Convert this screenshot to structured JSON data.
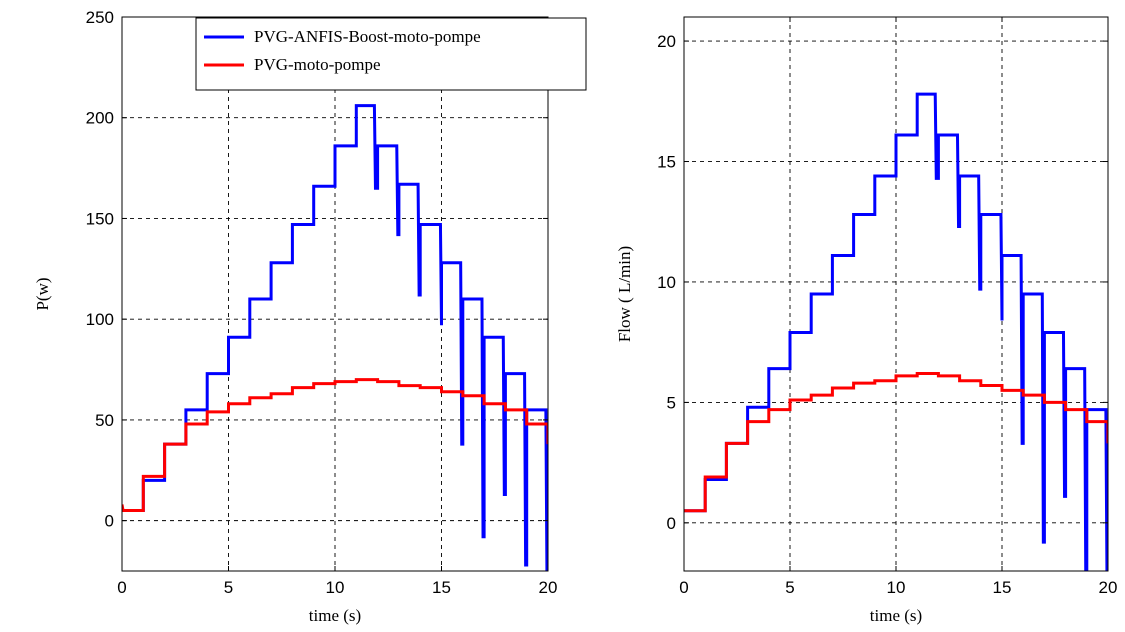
{
  "chart_data": [
    {
      "type": "line",
      "xlabel": "time (s)",
      "ylabel": "P(w)",
      "xlim": [
        0,
        20
      ],
      "ylim": [
        -25,
        250
      ],
      "xticks": [
        0,
        5,
        10,
        15,
        20
      ],
      "yticks": [
        0,
        50,
        100,
        150,
        200,
        250
      ],
      "grid": true,
      "legend": "top-right",
      "series": [
        {
          "name": "PVG-ANFIS-Boost-moto-pompe",
          "color": "#0000ff",
          "x": [
            0,
            1,
            1,
            2,
            2,
            3,
            3,
            4,
            4,
            5,
            5,
            6,
            6,
            7,
            7,
            8,
            8,
            9,
            9,
            10,
            10,
            11,
            11,
            11.85,
            11.9,
            12,
            12,
            12.9,
            12.95,
            13,
            13,
            13.9,
            13.95,
            14,
            14,
            14.95,
            15,
            15,
            15.9,
            15.95,
            16,
            16,
            16.9,
            16.95,
            17,
            17,
            17.9,
            17.95,
            18,
            18,
            18.9,
            18.95,
            19,
            19,
            19.9,
            19.95,
            20
          ],
          "y": [
            5,
            5,
            20,
            20,
            38,
            38,
            55,
            55,
            73,
            73,
            91,
            91,
            110,
            110,
            128,
            128,
            147,
            147,
            166,
            166,
            186,
            186,
            206,
            206,
            165,
            165,
            186,
            186,
            142,
            142,
            167,
            167,
            112,
            112,
            147,
            147,
            97,
            128,
            128,
            38,
            38,
            110,
            110,
            -8,
            -8,
            91,
            91,
            13,
            13,
            73,
            73,
            -22,
            -22,
            55,
            55,
            -25,
            -25
          ]
        },
        {
          "name": "PVG-moto-pompe",
          "color": "#ff0000",
          "x": [
            0,
            0.05,
            1,
            1,
            2,
            2,
            3,
            3,
            4,
            4,
            5,
            5,
            6,
            6,
            7,
            7,
            8,
            8,
            9,
            9,
            10,
            10,
            11,
            11,
            12,
            12,
            13,
            13,
            14,
            14,
            15,
            15,
            16,
            16,
            17,
            17,
            18,
            18,
            19,
            19,
            20,
            20
          ],
          "y": [
            8,
            5,
            5,
            22,
            22,
            38,
            38,
            48,
            48,
            54,
            54,
            58,
            58,
            61,
            61,
            63,
            63,
            66,
            66,
            68,
            68,
            69,
            69,
            70,
            70,
            69,
            69,
            67,
            67,
            66,
            66,
            64,
            64,
            62,
            62,
            58,
            58,
            55,
            55,
            48,
            48,
            38
          ]
        }
      ]
    },
    {
      "type": "line",
      "xlabel": "time (s)",
      "ylabel": "Flow ( L/min)",
      "xlim": [
        0,
        20
      ],
      "ylim": [
        -2,
        21
      ],
      "xticks": [
        0,
        5,
        10,
        15,
        20
      ],
      "yticks": [
        0,
        5,
        10,
        15,
        20
      ],
      "grid": true,
      "series": [
        {
          "name": "PVG-ANFIS-Boost-moto-pompe",
          "color": "#0000ff",
          "x": [
            0,
            1,
            1,
            2,
            2,
            3,
            3,
            4,
            4,
            5,
            5,
            6,
            6,
            7,
            7,
            8,
            8,
            9,
            9,
            10,
            10,
            11,
            11,
            11.85,
            11.9,
            12,
            12,
            12.9,
            12.95,
            13,
            13,
            13.9,
            13.95,
            14,
            14,
            14.95,
            15,
            15,
            15.9,
            15.95,
            16,
            16,
            16.9,
            16.95,
            17,
            17,
            17.9,
            17.95,
            18,
            18,
            18.9,
            18.95,
            19,
            19,
            19.9,
            19.95,
            20
          ],
          "y": [
            0.5,
            0.5,
            1.8,
            1.8,
            3.3,
            3.3,
            4.8,
            4.8,
            6.4,
            6.4,
            7.9,
            7.9,
            9.5,
            9.5,
            11.1,
            11.1,
            12.8,
            12.8,
            14.4,
            14.4,
            16.1,
            16.1,
            17.8,
            17.8,
            14.3,
            14.3,
            16.1,
            16.1,
            12.3,
            12.3,
            14.4,
            14.4,
            9.7,
            9.7,
            12.8,
            12.8,
            8.4,
            11.1,
            11.1,
            3.3,
            3.3,
            9.5,
            9.5,
            -0.8,
            -0.8,
            7.9,
            7.9,
            1.1,
            1.1,
            6.4,
            6.4,
            -2,
            -2,
            4.7,
            4.7,
            -2,
            -2
          ]
        },
        {
          "name": "PVG-moto-pompe",
          "color": "#ff0000",
          "x": [
            0,
            1,
            1,
            2,
            2,
            3,
            3,
            4,
            4,
            5,
            5,
            6,
            6,
            7,
            7,
            8,
            8,
            9,
            9,
            10,
            10,
            11,
            11,
            12,
            12,
            13,
            13,
            14,
            14,
            15,
            15,
            16,
            16,
            17,
            17,
            18,
            18,
            19,
            19,
            20,
            20
          ],
          "y": [
            0.5,
            0.5,
            1.9,
            1.9,
            3.3,
            3.3,
            4.2,
            4.2,
            4.7,
            4.7,
            5.1,
            5.1,
            5.3,
            5.3,
            5.6,
            5.6,
            5.8,
            5.8,
            5.9,
            5.9,
            6.1,
            6.1,
            6.2,
            6.2,
            6.1,
            6.1,
            5.9,
            5.9,
            5.7,
            5.7,
            5.5,
            5.5,
            5.3,
            5.3,
            5.0,
            5.0,
            4.7,
            4.7,
            4.2,
            4.2,
            3.3
          ]
        }
      ]
    }
  ]
}
